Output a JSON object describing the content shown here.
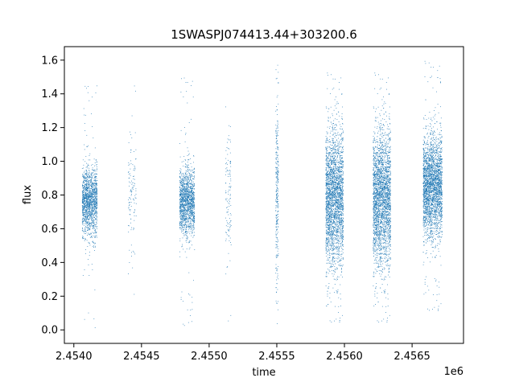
{
  "chart_data": {
    "type": "scatter",
    "title": "1SWASPJ074413.44+303200.6",
    "xlabel": "time",
    "ylabel": "flux",
    "x_offset_label": "1e6",
    "xlim": [
      2453930,
      2456880
    ],
    "ylim": [
      -0.08,
      1.68
    ],
    "xticks": [
      2454000,
      2454500,
      2455000,
      2455500,
      2456000,
      2456500
    ],
    "xtick_labels": [
      "2.4540",
      "2.4545",
      "2.4550",
      "2.4555",
      "2.4560",
      "2.4565"
    ],
    "yticks": [
      0.0,
      0.2,
      0.4,
      0.6,
      0.8,
      1.0,
      1.2,
      1.4,
      1.6
    ],
    "ytick_labels": [
      "0.0",
      "0.2",
      "0.4",
      "0.6",
      "0.8",
      "1.0",
      "1.2",
      "1.4",
      "1.6"
    ],
    "grid": false,
    "marker_color": "#1f77b4",
    "observing_seasons": [
      {
        "x_start": 2454060,
        "x_end": 2454170,
        "median_flux": 0.76,
        "flux_spread": 0.1,
        "density": "high"
      },
      {
        "x_start": 2454400,
        "x_end": 2454460,
        "median_flux": 0.8,
        "flux_spread": 0.18,
        "density": "low"
      },
      {
        "x_start": 2454780,
        "x_end": 2454890,
        "median_flux": 0.76,
        "flux_spread": 0.1,
        "density": "high"
      },
      {
        "x_start": 2455120,
        "x_end": 2455160,
        "median_flux": 0.78,
        "flux_spread": 0.2,
        "density": "low"
      },
      {
        "x_start": 2455490,
        "x_end": 2455510,
        "median_flux": 0.8,
        "flux_spread": 0.3,
        "density": "medium"
      },
      {
        "x_start": 2455860,
        "x_end": 2455990,
        "median_flux": 0.78,
        "flux_spread": 0.2,
        "density": "very-high"
      },
      {
        "x_start": 2456210,
        "x_end": 2456340,
        "median_flux": 0.78,
        "flux_spread": 0.2,
        "density": "very-high"
      },
      {
        "x_start": 2456580,
        "x_end": 2456720,
        "median_flux": 0.85,
        "flux_spread": 0.15,
        "density": "very-high"
      }
    ]
  }
}
